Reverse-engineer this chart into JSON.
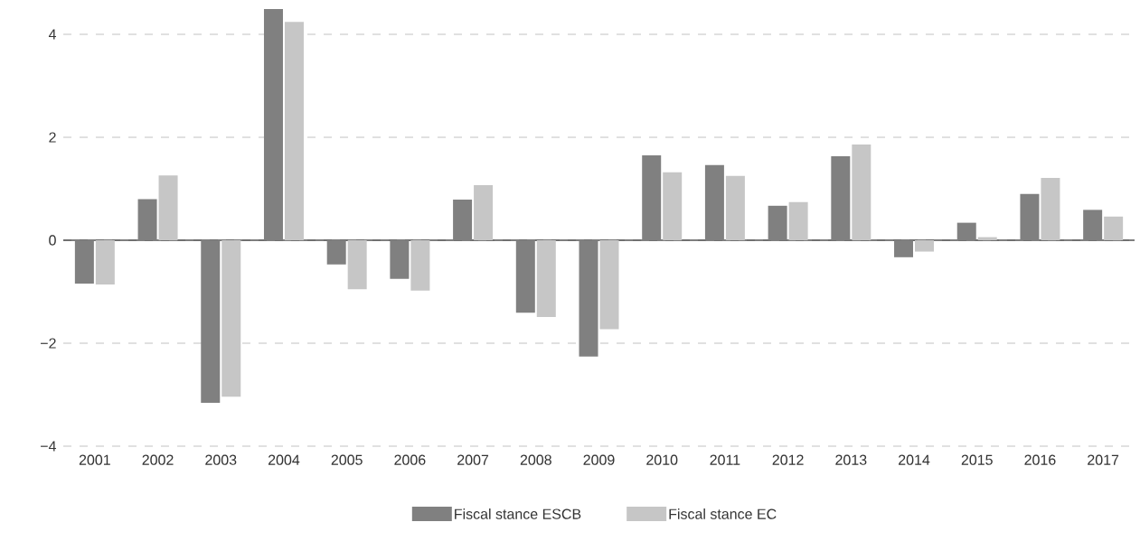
{
  "chart_data": {
    "type": "bar",
    "categories": [
      "2001",
      "2002",
      "2003",
      "2004",
      "2005",
      "2006",
      "2007",
      "2008",
      "2009",
      "2010",
      "2011",
      "2012",
      "2013",
      "2014",
      "2015",
      "2016",
      "2017"
    ],
    "series": [
      {
        "name": "Fiscal stance ESCB",
        "color": "#808080",
        "values": [
          -0.84,
          0.8,
          -3.16,
          4.49,
          -0.47,
          -0.75,
          0.79,
          -1.41,
          -2.26,
          1.65,
          1.46,
          0.67,
          1.63,
          -0.33,
          0.34,
          0.9,
          0.59
        ]
      },
      {
        "name": "Fiscal stance EC",
        "color": "#c6c6c6",
        "values": [
          -0.86,
          1.26,
          -3.04,
          4.24,
          -0.95,
          -0.98,
          1.07,
          -1.49,
          -1.73,
          1.32,
          1.25,
          0.74,
          1.86,
          -0.22,
          0.06,
          1.21,
          0.46
        ]
      }
    ],
    "ylim": [
      -4,
      4.5
    ],
    "yticks": [
      {
        "value": -4,
        "label": "−4"
      },
      {
        "value": -2,
        "label": "−2"
      },
      0,
      2,
      4
    ],
    "grid": "y",
    "legend": "bottom"
  }
}
